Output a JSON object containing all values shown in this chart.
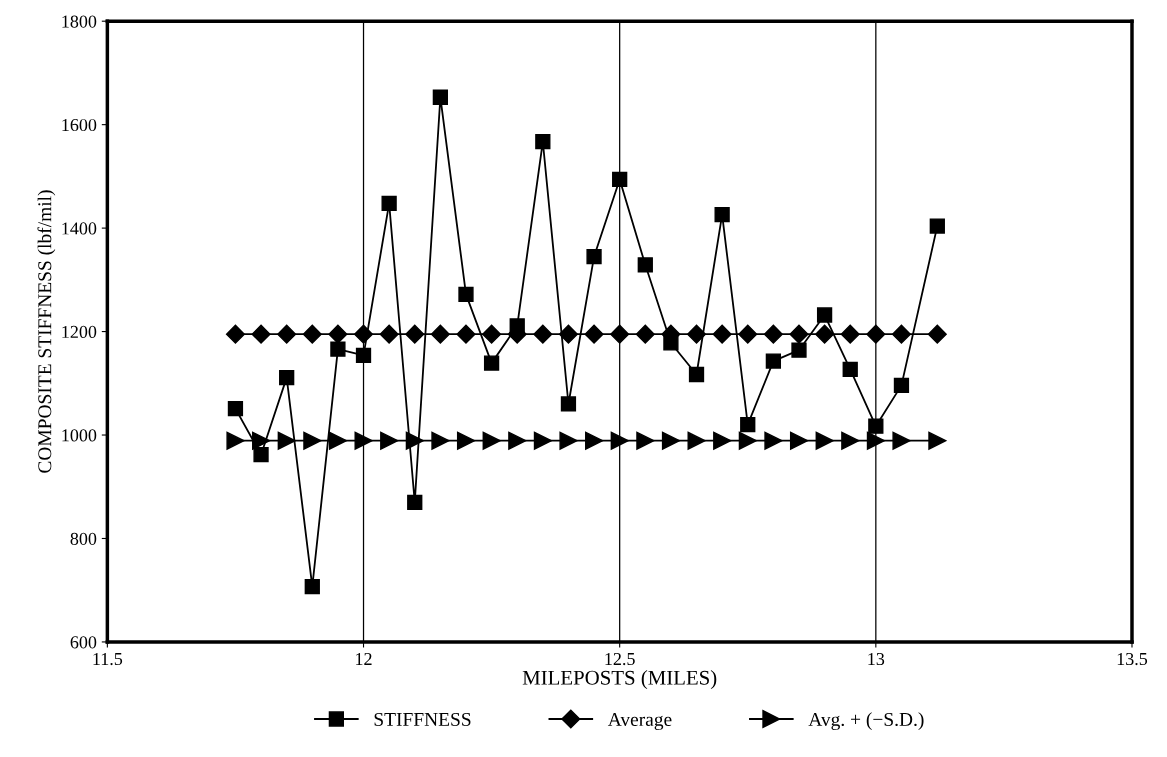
{
  "chart_data": {
    "type": "line",
    "xlabel": "MILEPOSTS (MILES)",
    "ylabel": "COMPOSITE STIFFNESS (lbf/mil)",
    "x": [
      11.75,
      11.8,
      11.85,
      11.9,
      11.95,
      12.0,
      12.05,
      12.1,
      12.15,
      12.2,
      12.25,
      12.3,
      12.35,
      12.4,
      12.45,
      12.5,
      12.55,
      12.6,
      12.65,
      12.7,
      12.75,
      12.8,
      12.85,
      12.9,
      12.95,
      13.0,
      13.05,
      13.12
    ],
    "series": [
      {
        "name": "STIFFNESS",
        "color": "#000000",
        "marker": "square",
        "values": [
          1051,
          962,
          1111,
          707,
          1166,
          1154,
          1448,
          870,
          1653,
          1272,
          1139,
          1211,
          1567,
          1060,
          1345,
          1494,
          1329,
          1178,
          1117,
          1426,
          1020,
          1143,
          1164,
          1232,
          1127,
          1017,
          1096,
          1404
        ]
      },
      {
        "name": "Average",
        "color": "#000000",
        "marker": "diamond",
        "values": [
          1195,
          1195,
          1195,
          1195,
          1195,
          1195,
          1195,
          1195,
          1195,
          1195,
          1195,
          1195,
          1195,
          1195,
          1195,
          1195,
          1195,
          1195,
          1195,
          1195,
          1195,
          1195,
          1195,
          1195,
          1195,
          1195,
          1195,
          1195
        ]
      },
      {
        "name": "Avg. + (−S.D.)",
        "color": "#000000",
        "marker": "triangle",
        "values": [
          989,
          989,
          989,
          989,
          989,
          989,
          989,
          989,
          989,
          989,
          989,
          989,
          989,
          989,
          989,
          989,
          989,
          989,
          989,
          989,
          989,
          989,
          989,
          989,
          989,
          989,
          989,
          989
        ]
      }
    ],
    "xlim": [
      11.5,
      13.5
    ],
    "xticks": [
      11.5,
      12,
      12.5,
      13,
      13.5
    ],
    "ylim": [
      600,
      1800
    ],
    "yticks": [
      600,
      800,
      1000,
      1200,
      1400,
      1600,
      1800
    ],
    "grid": "x",
    "legend": "bottom",
    "line_style": "solid"
  }
}
